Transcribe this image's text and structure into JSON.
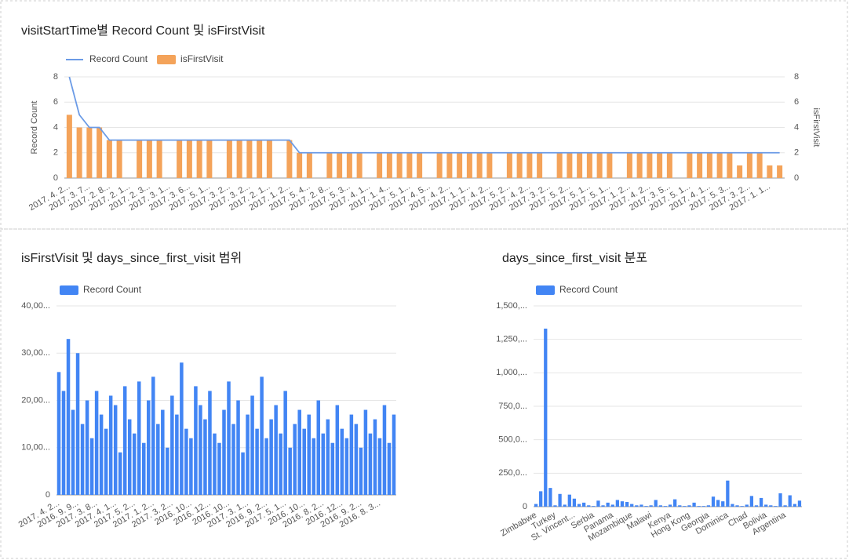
{
  "chart_data": [
    {
      "type": "combo",
      "title": "visitStartTime별 Record Count 및 isFirstVisit",
      "ylabel": "Record Count",
      "y2label": "isFirstVisit",
      "categories": [
        "2017. 4. 2...",
        null,
        "2017. 3. 7...",
        null,
        "2017. 2. 8...",
        null,
        "2017. 2. 1...",
        null,
        "2017. 2. 3...",
        null,
        "2017. 3. 1...",
        null,
        "2017. 3. 6...",
        null,
        "2017. 5. 1...",
        null,
        "2017. 3. 2...",
        null,
        "2017. 3. 2...",
        null,
        "2017. 2. 1...",
        null,
        "2017. 1. 2...",
        null,
        "2017. 5. 4...",
        null,
        "2017. 2. 8...",
        null,
        "2017. 5. 3...",
        null,
        "2017. 4. 1...",
        null,
        "2017. 1. 4...",
        null,
        "2017. 5. 1...",
        null,
        "2017. 4. 5...",
        null,
        "2017. 4. 2...",
        null,
        "2017. 1. 1...",
        null,
        "2017. 4. 2...",
        null,
        "2017. 5. 2...",
        null,
        "2017. 4. 2...",
        null,
        "2017. 3. 2...",
        null,
        "2017. 5. 2...",
        null,
        "2017. 5. 1...",
        null,
        "2017. 5. 1...",
        null,
        "2017. 1. 2...",
        null,
        "2017. 4. 2...",
        null,
        "2017. 3. 5...",
        null,
        "2017. 5. 1...",
        null,
        "2017. 4. 1...",
        null,
        "2017. 5. 3...",
        null,
        "2017. 3. 2...",
        null,
        "2017. 1. 1...",
        null
      ],
      "series": [
        {
          "name": "Record Count",
          "type": "line",
          "color": "#6b9be6",
          "values": [
            8,
            5,
            4,
            4,
            3,
            3,
            3,
            3,
            3,
            3,
            3,
            3,
            3,
            3,
            3,
            3,
            3,
            3,
            3,
            3,
            3,
            3,
            3,
            2,
            2,
            2,
            2,
            2,
            2,
            2,
            2,
            2,
            2,
            2,
            2,
            2,
            2,
            2,
            2,
            2,
            2,
            2,
            2,
            2,
            2,
            2,
            2,
            2,
            2,
            2,
            2,
            2,
            2,
            2,
            2,
            2,
            2,
            2,
            2,
            2,
            2,
            2,
            2,
            2,
            2,
            2,
            2,
            2,
            2,
            2,
            2,
            2
          ]
        },
        {
          "name": "isFirstVisit",
          "type": "bar",
          "color": "#f4a35a",
          "axis": "y2",
          "values": [
            5,
            4,
            4,
            4,
            3,
            3,
            0,
            3,
            3,
            3,
            0,
            3,
            3,
            3,
            3,
            0,
            3,
            3,
            3,
            3,
            3,
            0,
            3,
            2,
            2,
            0,
            2,
            2,
            2,
            2,
            0,
            2,
            2,
            2,
            2,
            2,
            0,
            2,
            2,
            2,
            2,
            2,
            2,
            0,
            2,
            2,
            2,
            2,
            0,
            2,
            2,
            2,
            2,
            2,
            2,
            0,
            2,
            2,
            2,
            2,
            2,
            0,
            2,
            2,
            2,
            2,
            2,
            1,
            2,
            2,
            1,
            1
          ]
        }
      ],
      "ylim": [
        0,
        8
      ],
      "yticks": [
        0,
        2,
        4,
        6,
        8
      ],
      "y2lim": [
        0,
        8
      ],
      "y2ticks": [
        0,
        2,
        4,
        6,
        8
      ],
      "grid": true,
      "legend": "top-left"
    },
    {
      "type": "bar",
      "title": "isFirstVisit 및 days_since_first_visit 범위",
      "categories": [
        "2017. 4. 2...",
        null,
        null,
        null,
        "2016. 9. 9...",
        null,
        null,
        null,
        "2017. 3. 8...",
        null,
        null,
        null,
        "2017. 4. 1...",
        null,
        null,
        null,
        "2017. 5. 2...",
        null,
        null,
        null,
        "2017. 1. 2...",
        null,
        null,
        null,
        "2017. 3. 2...",
        null,
        null,
        null,
        "2016. 10...",
        null,
        null,
        null,
        "2016. 12...",
        null,
        null,
        null,
        "2016. 10...",
        null,
        null,
        null,
        "2017. 3. 1...",
        null,
        null,
        null,
        "2016. 9. 2...",
        null,
        null,
        null,
        "2017. 5. 1...",
        null,
        null,
        null,
        "2016. 10...",
        null,
        null,
        null,
        "2016. 8. 2...",
        null,
        null,
        null,
        "2016. 12...",
        null,
        null,
        null,
        "2016. 9. 2...",
        null,
        null,
        null,
        "2016. 8. 3...",
        null,
        null,
        null
      ],
      "series": [
        {
          "name": "Record Count",
          "color": "#4285f4",
          "values": [
            26000,
            22000,
            33000,
            18000,
            30000,
            15000,
            20000,
            12000,
            22000,
            17000,
            14000,
            21000,
            19000,
            9000,
            23000,
            16000,
            13000,
            24000,
            11000,
            20000,
            25000,
            15000,
            18000,
            10000,
            21000,
            17000,
            28000,
            14000,
            12000,
            23000,
            19000,
            16000,
            22000,
            13000,
            11000,
            18000,
            24000,
            15000,
            20000,
            9000,
            17000,
            21000,
            14000,
            25000,
            12000,
            16000,
            19000,
            13000,
            22000,
            10000,
            15000,
            18000,
            14000,
            17000,
            12000,
            20000,
            13000,
            16000,
            11000,
            19000,
            14000,
            12000,
            17000,
            15000,
            10000,
            18000,
            13000,
            16000,
            12000,
            19000,
            11000,
            17000
          ]
        }
      ],
      "ylim": [
        0,
        40000
      ],
      "yticks": [
        0,
        {
          "value": 10000,
          "label": "10,00..."
        },
        {
          "value": 20000,
          "label": "20,00..."
        },
        {
          "value": 30000,
          "label": "30,00..."
        },
        {
          "value": 40000,
          "label": "40,00..."
        }
      ],
      "grid": true,
      "legend": "top-left"
    },
    {
      "type": "bar",
      "title": "days_since_first_visit 분포",
      "categories": [
        "Zimbabwe",
        null,
        null,
        null,
        "Turkey",
        null,
        null,
        null,
        "St. Vincent...",
        null,
        null,
        null,
        "Serbia",
        null,
        null,
        null,
        "Panama",
        null,
        null,
        null,
        "Mozambique",
        null,
        null,
        null,
        "Malawi",
        null,
        null,
        null,
        "Kenya",
        null,
        null,
        null,
        "Hong Kong",
        null,
        null,
        null,
        "Georgia",
        null,
        null,
        null,
        "Dominica",
        null,
        null,
        null,
        "Chad",
        null,
        null,
        null,
        "Bolivia",
        null,
        null,
        null,
        "Argentina",
        null,
        null,
        null
      ],
      "series": [
        {
          "name": "Record Count",
          "color": "#4285f4",
          "values": [
            20000,
            115000,
            1330000,
            140000,
            10000,
            95000,
            15000,
            90000,
            60000,
            20000,
            30000,
            10000,
            5000,
            45000,
            10000,
            30000,
            15000,
            50000,
            40000,
            35000,
            20000,
            10000,
            15000,
            5000,
            10000,
            50000,
            10000,
            5000,
            15000,
            55000,
            10000,
            5000,
            10000,
            30000,
            5000,
            5000,
            10000,
            75000,
            50000,
            40000,
            195000,
            20000,
            10000,
            5000,
            15000,
            80000,
            10000,
            65000,
            15000,
            10000,
            5000,
            100000,
            10000,
            85000,
            20000,
            45000
          ]
        }
      ],
      "ylim": [
        0,
        1500000
      ],
      "yticks": [
        0,
        {
          "value": 250000,
          "label": "250,0..."
        },
        {
          "value": 500000,
          "label": "500,0..."
        },
        {
          "value": 750000,
          "label": "750,0..."
        },
        {
          "value": 1000000,
          "label": "1,000,..."
        },
        {
          "value": 1250000,
          "label": "1,250,..."
        },
        {
          "value": 1500000,
          "label": "1,500,..."
        }
      ],
      "grid": true,
      "legend": "top-left"
    }
  ]
}
